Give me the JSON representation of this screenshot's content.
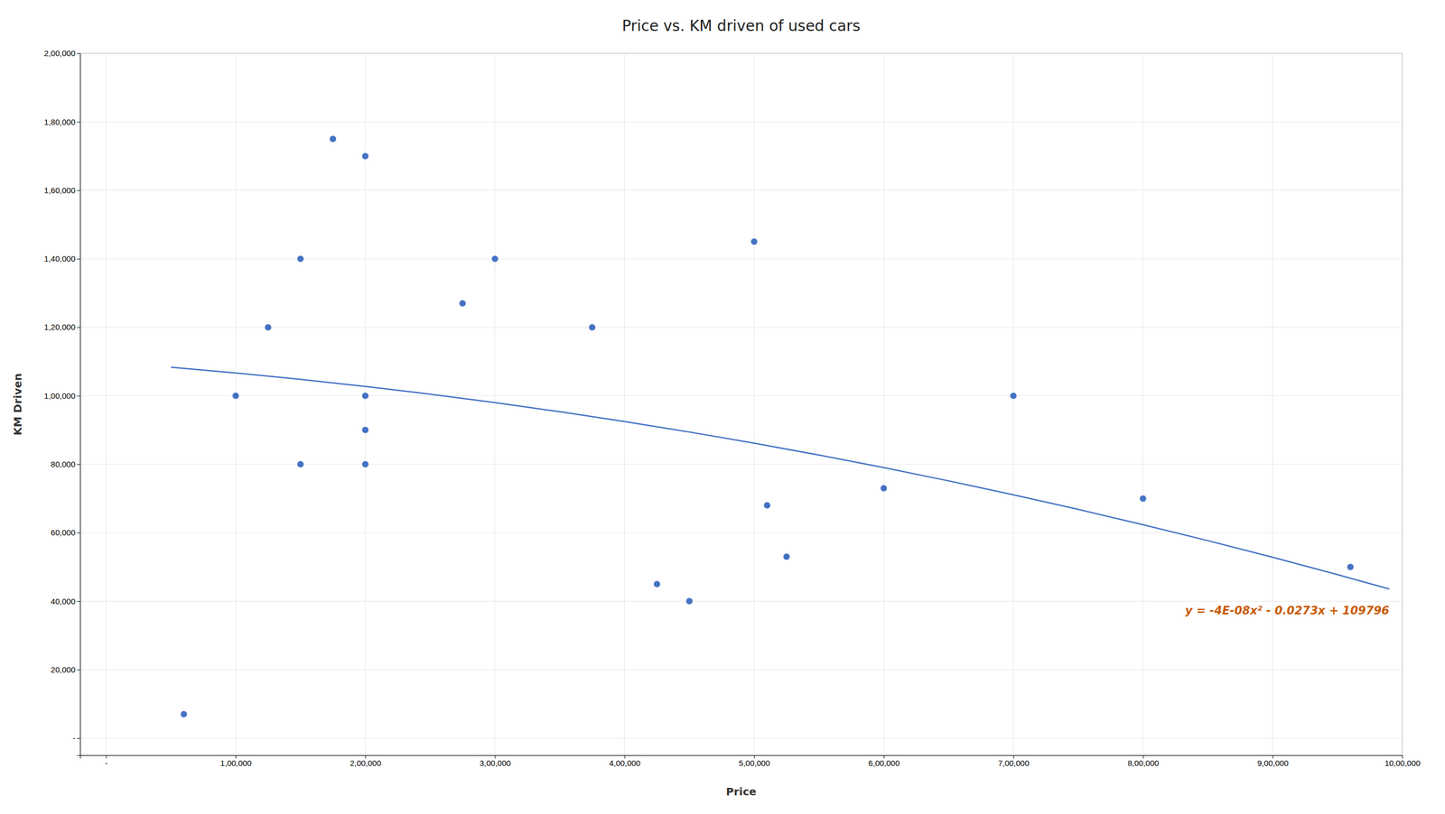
{
  "chart_data": {
    "type": "scatter",
    "title": "Price vs. KM driven of used cars",
    "xlabel": "Price",
    "ylabel": "KM Driven",
    "series": [
      {
        "type": "scatter",
        "color": "#4472c4",
        "marker": "circle",
        "x": [
          60000,
          100000,
          125000,
          150000,
          150000,
          175000,
          200000,
          200000,
          200000,
          200000,
          275000,
          300000,
          375000,
          425000,
          450000,
          500000,
          510000,
          525000,
          600000,
          700000,
          800000,
          960000
        ],
        "values": [
          7000,
          100000,
          120000,
          140000,
          80000,
          175000,
          170000,
          100000,
          90000,
          80000,
          127000,
          140000,
          120000,
          45000,
          40000,
          145000,
          68000,
          53000,
          73000,
          100000,
          70000,
          50000
        ]
      },
      {
        "type": "line",
        "color": "#4472c4",
        "line_style": "solid",
        "x": [
          50000,
          100000,
          150000,
          200000,
          250000,
          300000,
          350000,
          400000,
          450000,
          500000,
          550000,
          600000,
          650000,
          700000,
          750000,
          800000,
          850000,
          900000,
          950000,
          990000
        ],
        "values": [
          108331,
          106666,
          104801,
          102736,
          100471,
          98006,
          95341,
          92476,
          89411,
          86146,
          82681,
          79016,
          75151,
          71086,
          66821,
          62356,
          57691,
          52826,
          47761,
          43565
        ]
      }
    ],
    "annotations": [
      "y = -4E-08x² - 0.0273x + 109796"
    ],
    "xlim": [
      -20000,
      1000000
    ],
    "ylim": [
      -5000,
      200000
    ],
    "xticks": [
      {
        "value": 0,
        "label": "-"
      },
      {
        "value": 100000,
        "label": "1,00,000"
      },
      {
        "value": 200000,
        "label": "2,00,000"
      },
      {
        "value": 300000,
        "label": "3,00,000"
      },
      {
        "value": 400000,
        "label": "4,00,000"
      },
      {
        "value": 500000,
        "label": "5,00,000"
      },
      {
        "value": 600000,
        "label": "6,00,000"
      },
      {
        "value": 700000,
        "label": "7,00,000"
      },
      {
        "value": 800000,
        "label": "8,00,000"
      },
      {
        "value": 900000,
        "label": "9,00,000"
      },
      {
        "value": 1000000,
        "label": "10,00,000"
      }
    ],
    "yticks": [
      {
        "value": 0,
        "label": "-"
      },
      {
        "value": 20000,
        "label": "20,000"
      },
      {
        "value": 40000,
        "label": "40,000"
      },
      {
        "value": 60000,
        "label": "60,000"
      },
      {
        "value": 80000,
        "label": "80,000"
      },
      {
        "value": 100000,
        "label": "1,00,000"
      },
      {
        "value": 120000,
        "label": "1,20,000"
      },
      {
        "value": 140000,
        "label": "1,40,000"
      },
      {
        "value": 160000,
        "label": "1,60,000"
      },
      {
        "value": 180000,
        "label": "1,80,000"
      },
      {
        "value": 200000,
        "label": "2,00,000"
      }
    ],
    "grid": true
  }
}
